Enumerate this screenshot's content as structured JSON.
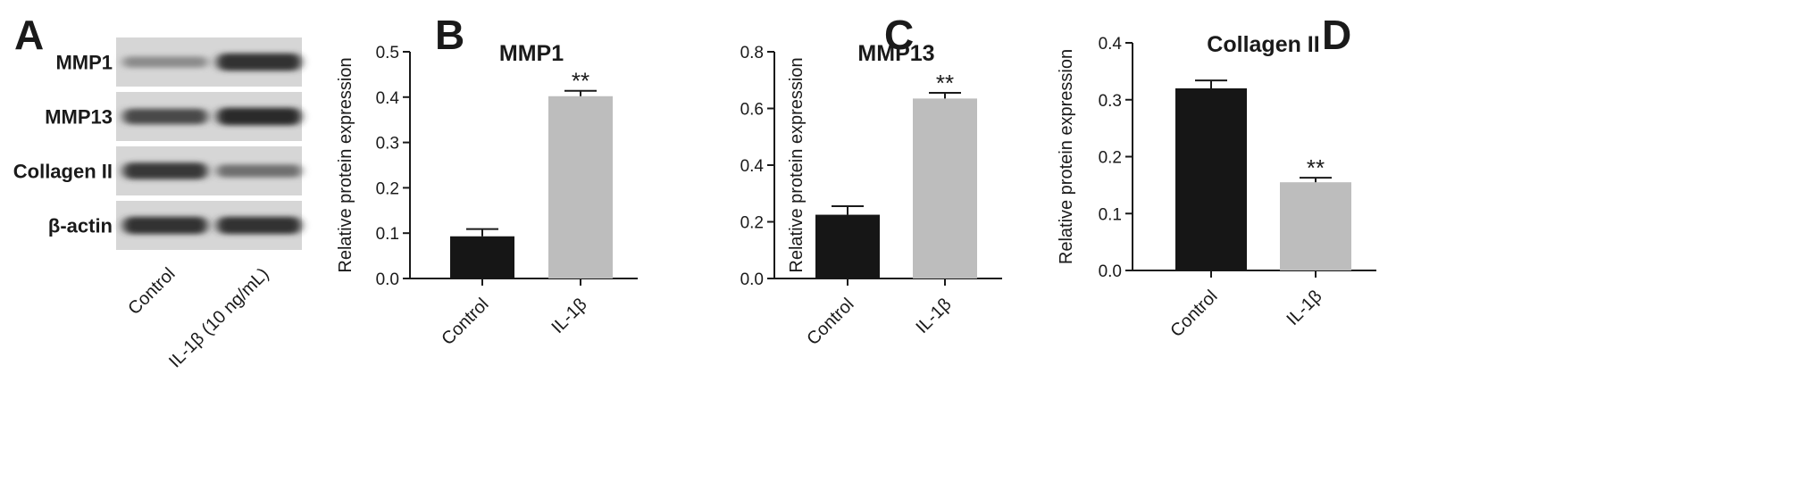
{
  "panel_letters": [
    "A",
    "B",
    "C",
    "D"
  ],
  "western_blot": {
    "rows": [
      {
        "label": "MMP1",
        "intensity": [
          0.38,
          0.95
        ]
      },
      {
        "label": "MMP13",
        "intensity": [
          0.8,
          0.98
        ]
      },
      {
        "label": "Collagen II",
        "intensity": [
          0.9,
          0.55
        ]
      },
      {
        "label": "β-actin",
        "intensity": [
          0.95,
          0.95
        ]
      }
    ],
    "lanes": [
      "Control",
      "IL-1β (10 ng/mL)"
    ]
  },
  "chart_data": [
    {
      "type": "bar",
      "title": "MMP1",
      "ylabel": "Relative protein expression",
      "xlabel": "",
      "categories": [
        "Control",
        "IL-1β"
      ],
      "values": [
        0.093,
        0.402
      ],
      "errors": [
        0.016,
        0.012
      ],
      "significance": [
        "",
        "**"
      ],
      "colors": [
        "#161616",
        "#bdbdbd"
      ],
      "ylim": [
        0.0,
        0.5
      ],
      "yticks": [
        0.0,
        0.1,
        0.2,
        0.3,
        0.4,
        0.5
      ],
      "ytick_labels": [
        "0.0",
        "0.1",
        "0.2",
        "0.3",
        "0.4",
        "0.5"
      ]
    },
    {
      "type": "bar",
      "title": "MMP13",
      "ylabel": "Relative protein expression",
      "xlabel": "",
      "categories": [
        "Control",
        "IL-1β"
      ],
      "values": [
        0.225,
        0.635
      ],
      "errors": [
        0.03,
        0.02
      ],
      "significance": [
        "",
        "**"
      ],
      "colors": [
        "#161616",
        "#bdbdbd"
      ],
      "ylim": [
        0.0,
        0.8
      ],
      "yticks": [
        0.0,
        0.2,
        0.4,
        0.6,
        0.8
      ],
      "ytick_labels": [
        "0.0",
        "0.2",
        "0.4",
        "0.6",
        "0.8"
      ]
    },
    {
      "type": "bar",
      "title": "Collagen II",
      "ylabel": "Relative protein expression",
      "xlabel": "",
      "categories": [
        "Control",
        "IL-1β"
      ],
      "values": [
        0.32,
        0.155
      ],
      "errors": [
        0.014,
        0.008
      ],
      "significance": [
        "",
        "**"
      ],
      "colors": [
        "#161616",
        "#bdbdbd"
      ],
      "ylim": [
        0.0,
        0.4
      ],
      "yticks": [
        0.0,
        0.1,
        0.2,
        0.3,
        0.4
      ],
      "ytick_labels": [
        "0.0",
        "0.1",
        "0.2",
        "0.3",
        "0.4"
      ]
    }
  ]
}
